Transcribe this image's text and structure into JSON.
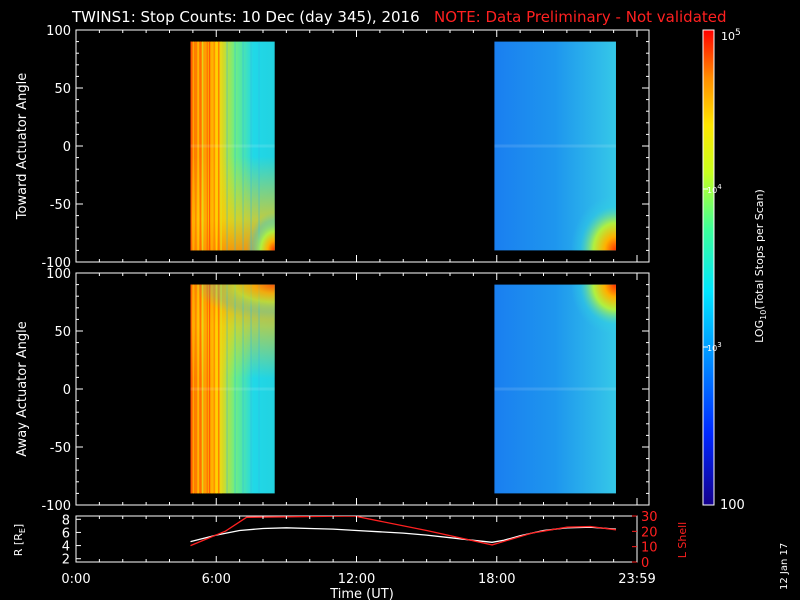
{
  "header": {
    "title": "TWINS1: Stop Counts: 10 Dec (day 345), 2016",
    "note": "NOTE: Data Preliminary - Not validated"
  },
  "footer": {
    "date_stamp": "12 Jan 17"
  },
  "chart_data": [
    {
      "type": "heatmap",
      "ylabel": "Toward Actuator Angle",
      "ylim": [
        -100,
        100
      ],
      "yticks": [
        "100",
        "50",
        "0",
        "-50",
        "-100"
      ],
      "xlim_hours": [
        0,
        24
      ],
      "data_intervals_hours": [
        [
          4.9,
          8.5
        ],
        [
          17.9,
          23.1
        ]
      ]
    },
    {
      "type": "heatmap",
      "ylabel": "Away Actuator Angle",
      "ylim": [
        -100,
        100
      ],
      "yticks": [
        "100",
        "50",
        "0",
        "-50",
        "-100"
      ],
      "xlim_hours": [
        0,
        24
      ],
      "data_intervals_hours": [
        [
          4.9,
          8.5
        ],
        [
          17.9,
          23.1
        ]
      ]
    },
    {
      "type": "line",
      "ylabel": "R [R",
      "ylabel_sub": "E",
      "ylabel_end": "]",
      "ylim": [
        1.5,
        8.5
      ],
      "yticks": [
        "8",
        "6",
        "4",
        "2"
      ],
      "y2label": "L Shell",
      "y2lim": [
        0,
        30
      ],
      "y2ticks": [
        "30",
        "20",
        "10",
        "0"
      ],
      "xlabel": "Time (UT)",
      "xticks": [
        "0:00",
        "6:00",
        "12:00",
        "18:00",
        "23:59"
      ],
      "series": [
        {
          "color": "#ffffff",
          "x": [
            4.9,
            6.0,
            7.0,
            8.0,
            9.0,
            10.0,
            11.0,
            12.0,
            13.0,
            14.0,
            15.0,
            16.0,
            17.0,
            17.8,
            18.3,
            19.0,
            20.0,
            21.0,
            22.0,
            23.1
          ],
          "y": [
            4.6,
            5.6,
            6.3,
            6.6,
            6.7,
            6.6,
            6.5,
            6.3,
            6.1,
            5.9,
            5.6,
            5.2,
            4.8,
            4.5,
            4.8,
            5.5,
            6.3,
            6.7,
            6.8,
            6.5
          ]
        },
        {
          "color": "#ff2020",
          "x": [
            4.9,
            6.4,
            7.3,
            11.9,
            15.0,
            17.8,
            19.5,
            21.0,
            22.0,
            23.1
          ],
          "y": [
            4.0,
            6.2,
            8.3,
            8.5,
            6.3,
            4.1,
            5.9,
            6.8,
            6.9,
            6.4
          ]
        }
      ]
    }
  ],
  "colorbar": {
    "label": "LOG10(Total Stops per Scan)",
    "label_pre": "LOG",
    "label_sub": "10",
    "label_post": "(Total Stops per Scan)",
    "scale": "log",
    "range": [
      100,
      100000
    ],
    "tick_top": "10^5",
    "tick_top_base": "10",
    "tick_top_exp": "5",
    "tick_mid1": "10^4",
    "tick_mid1_base": "10",
    "tick_mid1_exp": "4",
    "tick_mid2": "10^3",
    "tick_mid2_base": "10",
    "tick_mid2_exp": "3",
    "tick_bottom": "100"
  }
}
